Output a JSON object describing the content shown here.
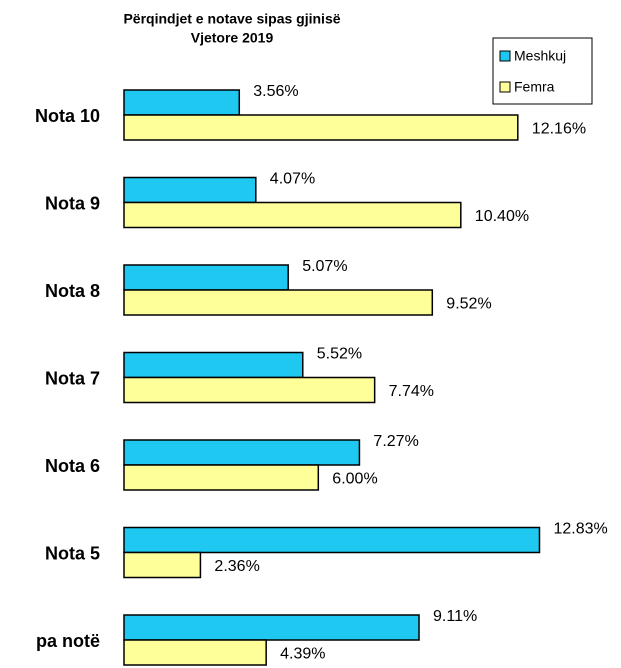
{
  "chart_data": {
    "type": "hbar",
    "title": "Përqindjet e notave sipas gjinisë",
    "subtitle": "Vjetore 2019",
    "categories": [
      "Nota 10",
      "Nota 9",
      "Nota 8",
      "Nota 7",
      "Nota 6",
      "Nota 5",
      "pa notë"
    ],
    "series": [
      {
        "name": "Meshkuj",
        "color": "#1ec8f0",
        "values": [
          3.56,
          4.07,
          5.07,
          5.52,
          7.27,
          12.83,
          9.11
        ],
        "value_labels": [
          "3.56%",
          "4.07%",
          "5.07%",
          "5.52%",
          "7.27%",
          "12.83%",
          "9.11%"
        ]
      },
      {
        "name": "Femra",
        "color": "#ffff99",
        "values": [
          12.16,
          10.4,
          9.52,
          7.74,
          6.0,
          2.36,
          4.39
        ],
        "value_labels": [
          "12.16%",
          "10.40%",
          "9.52%",
          "7.74%",
          "6.00%",
          "2.36%",
          "4.39%"
        ]
      }
    ],
    "xlim": [
      0,
      13
    ],
    "legend": "top-right"
  }
}
